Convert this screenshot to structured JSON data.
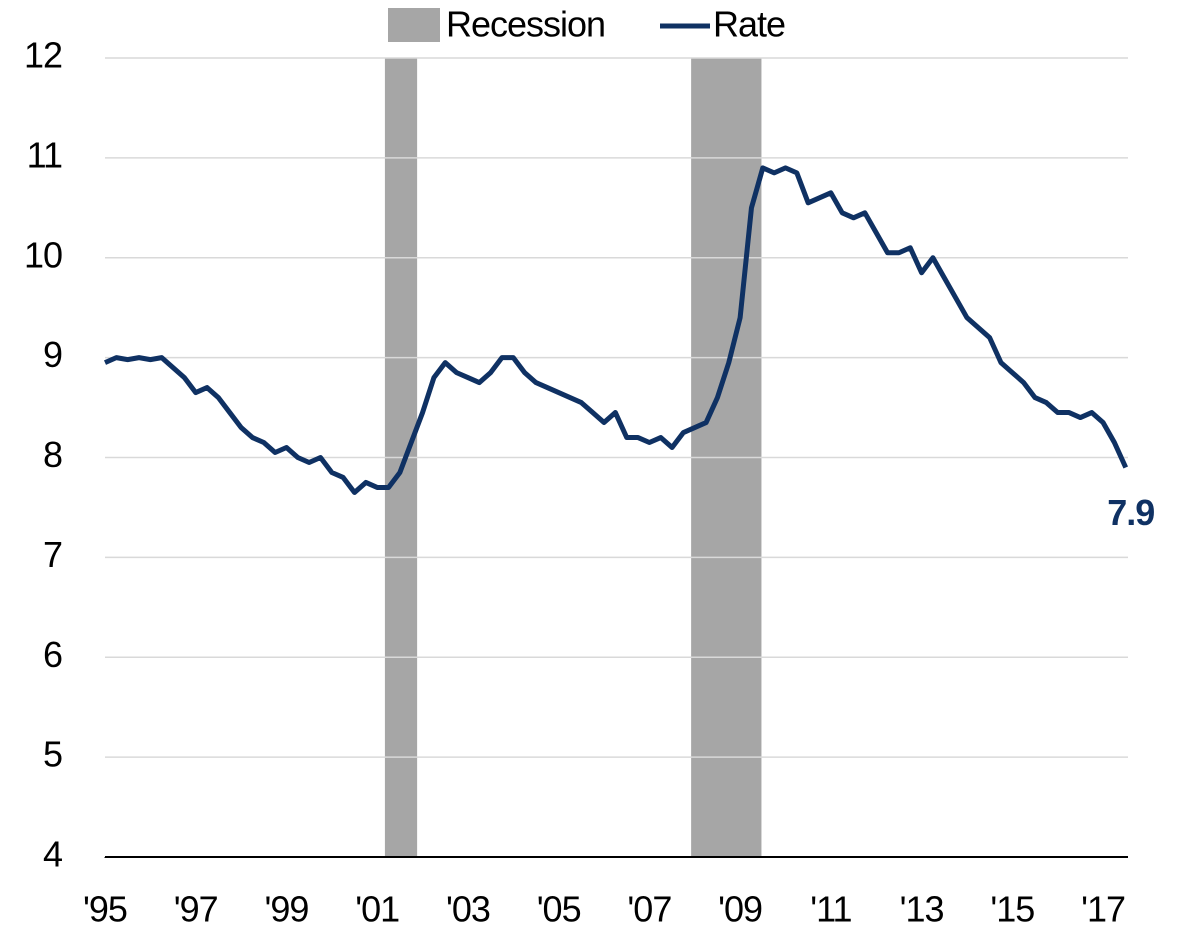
{
  "chart_data": {
    "type": "line",
    "x": [
      1995,
      1995.25,
      1995.5,
      1995.75,
      1996,
      1996.25,
      1996.5,
      1996.75,
      1997,
      1997.25,
      1997.5,
      1997.75,
      1998,
      1998.25,
      1998.5,
      1998.75,
      1999,
      1999.25,
      1999.5,
      1999.75,
      2000,
      2000.25,
      2000.5,
      2000.75,
      2001,
      2001.25,
      2001.5,
      2001.75,
      2002,
      2002.25,
      2002.5,
      2002.75,
      2003,
      2003.25,
      2003.5,
      2003.75,
      2004,
      2004.25,
      2004.5,
      2004.75,
      2005,
      2005.25,
      2005.5,
      2005.75,
      2006,
      2006.25,
      2006.5,
      2006.75,
      2007,
      2007.25,
      2007.5,
      2007.75,
      2008,
      2008.25,
      2008.5,
      2008.75,
      2009,
      2009.25,
      2009.5,
      2009.75,
      2010,
      2010.25,
      2010.5,
      2010.75,
      2011,
      2011.25,
      2011.5,
      2011.75,
      2012,
      2012.25,
      2012.5,
      2012.75,
      2013,
      2013.25,
      2013.5,
      2013.75,
      2014,
      2014.25,
      2014.5,
      2014.75,
      2015,
      2015.25,
      2015.5,
      2015.75,
      2016,
      2016.25,
      2016.5,
      2016.75,
      2017,
      2017.25,
      2017.5
    ],
    "series": [
      {
        "name": "Rate",
        "color": "#0f3163",
        "values": [
          8.95,
          9.0,
          8.98,
          9.0,
          8.98,
          9.0,
          8.9,
          8.8,
          8.65,
          8.7,
          8.6,
          8.45,
          8.3,
          8.2,
          8.15,
          8.05,
          8.1,
          8.0,
          7.95,
          8.0,
          7.85,
          7.8,
          7.65,
          7.75,
          7.7,
          7.7,
          7.85,
          8.15,
          8.45,
          8.8,
          8.95,
          8.85,
          8.8,
          8.75,
          8.85,
          9.0,
          9.0,
          8.85,
          8.75,
          8.7,
          8.65,
          8.6,
          8.55,
          8.45,
          8.35,
          8.45,
          8.2,
          8.2,
          8.15,
          8.2,
          8.1,
          8.25,
          8.3,
          8.35,
          8.6,
          8.95,
          9.4,
          10.5,
          10.9,
          10.85,
          10.9,
          10.85,
          10.55,
          10.6,
          10.65,
          10.45,
          10.4,
          10.45,
          10.25,
          10.05,
          10.05,
          10.1,
          9.85,
          10.0,
          9.8,
          9.6,
          9.4,
          9.3,
          9.2,
          8.95,
          8.85,
          8.75,
          8.6,
          8.55,
          8.45,
          8.45,
          8.4,
          8.45,
          8.35,
          8.15,
          7.9
        ]
      }
    ],
    "bands": {
      "name": "Recession",
      "color": "#a6a6a6",
      "ranges": [
        [
          2001.17,
          2001.88
        ],
        [
          2007.92,
          2009.47
        ]
      ]
    },
    "xlim": [
      1995,
      2017.55
    ],
    "xticks": [
      {
        "value": 1995,
        "label": "'95"
      },
      {
        "value": 1997,
        "label": "'97"
      },
      {
        "value": 1999,
        "label": "'99"
      },
      {
        "value": 2001,
        "label": "'01"
      },
      {
        "value": 2003,
        "label": "'03"
      },
      {
        "value": 2005,
        "label": "'05"
      },
      {
        "value": 2007,
        "label": "'07"
      },
      {
        "value": 2009,
        "label": "'09"
      },
      {
        "value": 2011,
        "label": "'11"
      },
      {
        "value": 2013,
        "label": "'13"
      },
      {
        "value": 2015,
        "label": "'15"
      },
      {
        "value": 2017,
        "label": "'17"
      }
    ],
    "ylim": [
      4,
      12
    ],
    "yticks": [
      4,
      5,
      6,
      7,
      8,
      9,
      10,
      11,
      12
    ],
    "grid": true
  }
}
